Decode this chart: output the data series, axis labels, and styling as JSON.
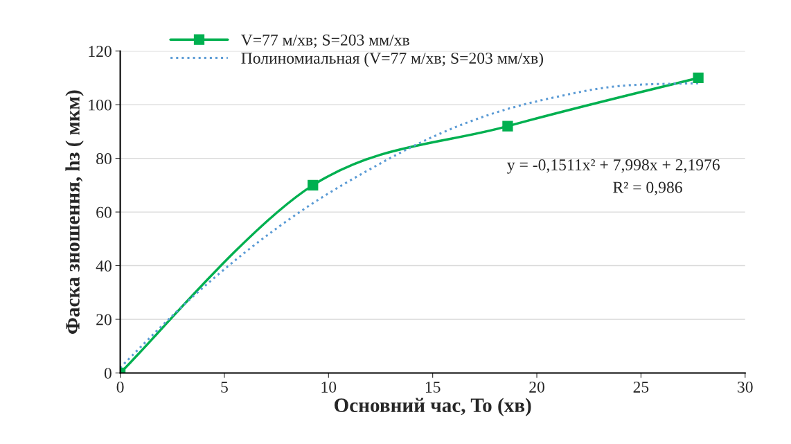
{
  "chart_data": {
    "type": "line",
    "xlabel": "Основний час, To (хв)",
    "ylabel": "Фаска зношення, hз ( мкм)",
    "xlim": [
      0,
      30
    ],
    "xticks": [
      0,
      5,
      10,
      15,
      20,
      25,
      30
    ],
    "ylim": [
      0,
      120
    ],
    "yticks": [
      0,
      20,
      40,
      60,
      80,
      100,
      120
    ],
    "grid": "y",
    "legend": "top",
    "series": [
      {
        "name": "V=77 м/хв; S=203 мм/хв",
        "color": "#00b050",
        "x": [
          0,
          9.25,
          18.6,
          27.75
        ],
        "values": [
          0,
          70,
          92,
          110
        ],
        "marker": "square",
        "line_style": "solid"
      },
      {
        "name": "Полиномиальная (V=77 м/хв; S=203 мм/хв)",
        "color": "#5b9bd5",
        "x": [
          0,
          3,
          6,
          9,
          12,
          15,
          18,
          21,
          24,
          27.75
        ],
        "values": [
          2,
          25,
          45,
          62,
          76,
          88,
          97,
          103,
          107,
          108
        ],
        "marker": "none",
        "line_style": "dotted"
      }
    ],
    "annotations": [
      "y = -0,1511x² + 7,998x + 2,1976",
      "R² = 0,986"
    ]
  }
}
